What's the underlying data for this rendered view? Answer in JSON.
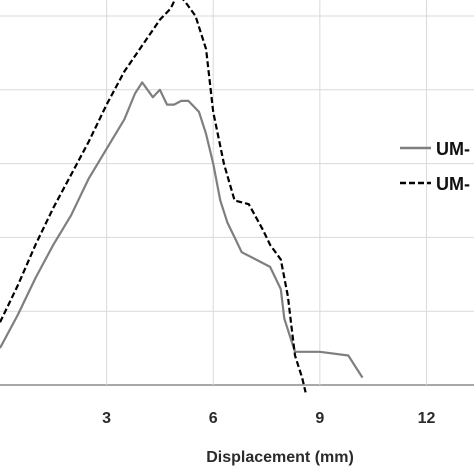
{
  "chart_data": {
    "type": "line",
    "xlabel": "Displacement (mm)",
    "ylabel": "",
    "xlim": [
      0,
      13
    ],
    "ylim": [
      0,
      5
    ],
    "x_ticks": [
      3,
      6,
      9,
      12
    ],
    "x_tick_labels": [
      "3",
      "6",
      "9",
      "12"
    ],
    "y_gridlines": [
      0,
      1,
      2,
      3,
      4,
      5
    ],
    "grid": true,
    "legend_position": "right",
    "series": [
      {
        "name": "UM-",
        "color": "#7f7f7f",
        "style": "solid",
        "x": [
          0,
          0.5,
          1.0,
          1.5,
          2.0,
          2.5,
          3.0,
          3.5,
          3.8,
          4.0,
          4.3,
          4.5,
          4.7,
          4.9,
          5.1,
          5.3,
          5.6,
          5.8,
          6.0,
          6.2,
          6.4,
          6.6,
          6.8,
          7.2,
          7.6,
          7.9,
          8.0,
          8.2,
          8.3,
          9.0,
          9.8,
          10.0,
          10.2
        ],
        "y": [
          0.5,
          0.95,
          1.45,
          1.9,
          2.3,
          2.8,
          3.2,
          3.6,
          3.95,
          4.1,
          3.9,
          4.0,
          3.8,
          3.8,
          3.85,
          3.85,
          3.7,
          3.4,
          3.0,
          2.5,
          2.2,
          2.0,
          1.8,
          1.7,
          1.6,
          1.3,
          0.9,
          0.6,
          0.45,
          0.45,
          0.4,
          0.25,
          0.1
        ]
      },
      {
        "name": "UM-",
        "color": "#000000",
        "style": "dashed",
        "x": [
          0,
          0.5,
          1.0,
          1.5,
          2.0,
          2.5,
          3.0,
          3.5,
          4.0,
          4.5,
          4.8,
          5.0,
          5.2,
          5.5,
          5.8,
          6.0,
          6.3,
          6.6,
          7.0,
          7.4,
          7.6,
          7.9,
          8.1,
          8.2,
          8.3,
          8.5,
          8.6
        ],
        "y": [
          0.85,
          1.35,
          1.9,
          2.4,
          2.85,
          3.3,
          3.8,
          4.25,
          4.6,
          4.95,
          5.1,
          5.3,
          5.2,
          5.0,
          4.55,
          3.7,
          3.0,
          2.5,
          2.45,
          2.1,
          1.9,
          1.7,
          1.2,
          0.8,
          0.4,
          0.1,
          -0.1
        ]
      }
    ]
  }
}
